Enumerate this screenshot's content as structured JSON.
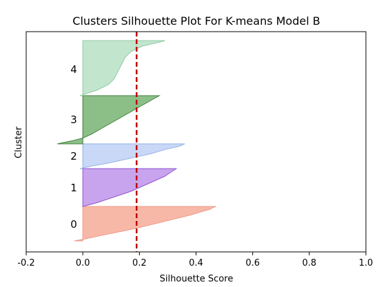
{
  "chart_data": {
    "type": "silhouette",
    "title": "Clusters Silhouette Plot For K-means Model B",
    "xlabel": "Silhouette Score",
    "ylabel": "Cluster",
    "xlim": [
      -0.2,
      1.0
    ],
    "x_ticks": [
      "-0.2",
      "0.0",
      "0.2",
      "0.4",
      "0.6",
      "0.8",
      "1.0"
    ],
    "x_tick_values": [
      -0.2,
      0.0,
      0.2,
      0.4,
      0.6,
      0.8,
      1.0
    ],
    "grid": false,
    "average_silhouette": 0.19,
    "average_line_color": "#c00000",
    "clusters": [
      {
        "label": "0",
        "fill": "#f8b8a8",
        "edge": "#ee9a88",
        "min_score": -0.03,
        "max_score": 0.47,
        "profile": [
          [
            0,
            0.47
          ],
          [
            0.03,
            0.46
          ],
          [
            0.08,
            0.45
          ],
          [
            0.15,
            0.42
          ],
          [
            0.25,
            0.38
          ],
          [
            0.35,
            0.33
          ],
          [
            0.45,
            0.28
          ],
          [
            0.55,
            0.23
          ],
          [
            0.65,
            0.18
          ],
          [
            0.75,
            0.12
          ],
          [
            0.85,
            0.06
          ],
          [
            0.94,
            0.01
          ],
          [
            1,
            -0.03
          ]
        ]
      },
      {
        "label": "1",
        "fill": "#c9a4ee",
        "edge": "#8e52cf",
        "min_score": 0.0,
        "max_score": 0.33,
        "profile": [
          [
            0,
            0.33
          ],
          [
            0.1,
            0.31
          ],
          [
            0.2,
            0.29
          ],
          [
            0.3,
            0.26
          ],
          [
            0.4,
            0.23
          ],
          [
            0.5,
            0.2
          ],
          [
            0.6,
            0.17
          ],
          [
            0.7,
            0.13
          ],
          [
            0.8,
            0.09
          ],
          [
            0.9,
            0.05
          ],
          [
            1,
            0.0
          ]
        ]
      },
      {
        "label": "2",
        "fill": "#c8d8f6",
        "edge": "#94b2e6",
        "min_score": -0.01,
        "max_score": 0.36,
        "profile": [
          [
            0,
            0.36
          ],
          [
            0.1,
            0.34
          ],
          [
            0.2,
            0.3
          ],
          [
            0.3,
            0.27
          ],
          [
            0.4,
            0.24
          ],
          [
            0.5,
            0.2
          ],
          [
            0.6,
            0.16
          ],
          [
            0.7,
            0.12
          ],
          [
            0.8,
            0.08
          ],
          [
            0.9,
            0.03
          ],
          [
            1,
            -0.01
          ]
        ]
      },
      {
        "label": "3",
        "fill": "#8cbf88",
        "edge": "#3f7d3b",
        "min_score": -0.09,
        "max_score": 0.27,
        "profile": [
          [
            0,
            0.27
          ],
          [
            0.1,
            0.24
          ],
          [
            0.2,
            0.21
          ],
          [
            0.3,
            0.18
          ],
          [
            0.4,
            0.15
          ],
          [
            0.5,
            0.12
          ],
          [
            0.6,
            0.09
          ],
          [
            0.7,
            0.06
          ],
          [
            0.8,
            0.03
          ],
          [
            0.88,
            0.0
          ],
          [
            0.94,
            -0.04
          ],
          [
            1,
            -0.09
          ]
        ]
      },
      {
        "label": "4",
        "fill": "#c2e5ce",
        "edge": "#8fcaa2",
        "min_score": -0.01,
        "max_score": 0.29,
        "profile": [
          [
            0,
            0.29
          ],
          [
            0.03,
            0.27
          ],
          [
            0.1,
            0.21
          ],
          [
            0.2,
            0.17
          ],
          [
            0.3,
            0.15
          ],
          [
            0.4,
            0.14
          ],
          [
            0.5,
            0.13
          ],
          [
            0.6,
            0.12
          ],
          [
            0.7,
            0.11
          ],
          [
            0.8,
            0.09
          ],
          [
            0.9,
            0.05
          ],
          [
            1,
            -0.01
          ]
        ]
      }
    ]
  }
}
